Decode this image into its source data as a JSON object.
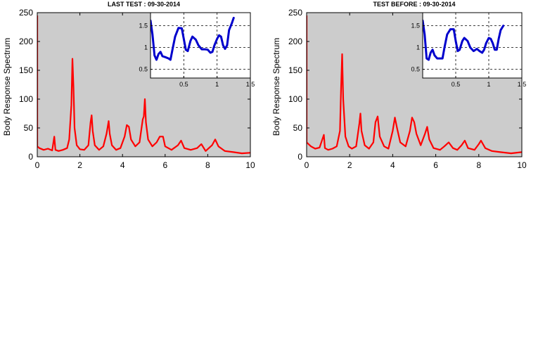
{
  "chart_data": [
    {
      "type": "line",
      "title": "LAST TEST : 09-30-2014",
      "xlabel": "",
      "ylabel": "Body Response Spectrum",
      "xlim": [
        0,
        10
      ],
      "ylim": [
        0,
        250
      ],
      "x_ticks": [
        0,
        2,
        4,
        6,
        8,
        10
      ],
      "y_ticks": [
        0,
        50,
        100,
        150,
        200,
        250
      ],
      "background": "#cccccc",
      "grid": false,
      "series": [
        {
          "color": "#ff0000",
          "points": [
            [
              0.0,
              245
            ],
            [
              0.0,
              18
            ],
            [
              0.1,
              15
            ],
            [
              0.3,
              12
            ],
            [
              0.5,
              14
            ],
            [
              0.7,
              11
            ],
            [
              0.8,
              35
            ],
            [
              0.85,
              12
            ],
            [
              1.0,
              10
            ],
            [
              1.2,
              12
            ],
            [
              1.4,
              15
            ],
            [
              1.5,
              30
            ],
            [
              1.6,
              90
            ],
            [
              1.65,
              170
            ],
            [
              1.7,
              120
            ],
            [
              1.75,
              50
            ],
            [
              1.85,
              20
            ],
            [
              2.0,
              13
            ],
            [
              2.2,
              12
            ],
            [
              2.4,
              20
            ],
            [
              2.5,
              60
            ],
            [
              2.55,
              72
            ],
            [
              2.6,
              45
            ],
            [
              2.7,
              20
            ],
            [
              2.9,
              12
            ],
            [
              3.1,
              18
            ],
            [
              3.25,
              40
            ],
            [
              3.35,
              62
            ],
            [
              3.4,
              40
            ],
            [
              3.5,
              20
            ],
            [
              3.7,
              12
            ],
            [
              3.9,
              15
            ],
            [
              4.1,
              35
            ],
            [
              4.2,
              55
            ],
            [
              4.3,
              52
            ],
            [
              4.4,
              30
            ],
            [
              4.6,
              18
            ],
            [
              4.8,
              25
            ],
            [
              4.95,
              65
            ],
            [
              5.0,
              70
            ],
            [
              5.05,
              100
            ],
            [
              5.1,
              60
            ],
            [
              5.2,
              30
            ],
            [
              5.4,
              18
            ],
            [
              5.6,
              25
            ],
            [
              5.75,
              35
            ],
            [
              5.9,
              35
            ],
            [
              6.0,
              18
            ],
            [
              6.3,
              12
            ],
            [
              6.6,
              20
            ],
            [
              6.75,
              28
            ],
            [
              6.9,
              15
            ],
            [
              7.2,
              12
            ],
            [
              7.5,
              15
            ],
            [
              7.7,
              22
            ],
            [
              7.9,
              10
            ],
            [
              8.2,
              20
            ],
            [
              8.35,
              30
            ],
            [
              8.5,
              18
            ],
            [
              8.8,
              10
            ],
            [
              9.2,
              8
            ],
            [
              9.6,
              6
            ],
            [
              10.0,
              7
            ]
          ]
        }
      ],
      "inset": {
        "type": "line",
        "xlim": [
          0,
          1.5
        ],
        "ylim": [
          0.3,
          1.8
        ],
        "x_ticks": [
          0.5,
          1,
          1.5
        ],
        "y_ticks": [
          0.5,
          1,
          1.5
        ],
        "background": "#ffffff",
        "grid": true,
        "series": [
          {
            "color": "#0000cc",
            "points": [
              [
                0.0,
                1.62
              ],
              [
                0.03,
                1.3
              ],
              [
                0.06,
                0.82
              ],
              [
                0.09,
                0.72
              ],
              [
                0.12,
                0.85
              ],
              [
                0.15,
                0.9
              ],
              [
                0.18,
                0.8
              ],
              [
                0.22,
                0.78
              ],
              [
                0.27,
                0.75
              ],
              [
                0.3,
                0.72
              ],
              [
                0.33,
                0.95
              ],
              [
                0.37,
                1.25
              ],
              [
                0.42,
                1.45
              ],
              [
                0.47,
                1.44
              ],
              [
                0.5,
                1.2
              ],
              [
                0.53,
                0.95
              ],
              [
                0.56,
                0.92
              ],
              [
                0.6,
                1.15
              ],
              [
                0.63,
                1.25
              ],
              [
                0.68,
                1.18
              ],
              [
                0.72,
                1.05
              ],
              [
                0.77,
                0.96
              ],
              [
                0.82,
                0.96
              ],
              [
                0.86,
                0.95
              ],
              [
                0.9,
                0.88
              ],
              [
                0.93,
                0.9
              ],
              [
                0.96,
                1.05
              ],
              [
                1.0,
                1.2
              ],
              [
                1.03,
                1.28
              ],
              [
                1.06,
                1.25
              ],
              [
                1.09,
                1.05
              ],
              [
                1.12,
                0.97
              ],
              [
                1.15,
                1.05
              ],
              [
                1.18,
                1.4
              ],
              [
                1.22,
                1.55
              ],
              [
                1.25,
                1.68
              ]
            ]
          }
        ]
      }
    },
    {
      "type": "line",
      "title": "TEST BEFORE : 09-30-2014",
      "xlabel": "",
      "ylabel": "Body Response Spectrum",
      "xlim": [
        0,
        10
      ],
      "ylim": [
        0,
        250
      ],
      "x_ticks": [
        0,
        2,
        4,
        6,
        8,
        10
      ],
      "y_ticks": [
        0,
        50,
        100,
        150,
        200,
        250
      ],
      "background": "#cccccc",
      "grid": false,
      "series": [
        {
          "color": "#ff0000",
          "points": [
            [
              0.0,
              245
            ],
            [
              0.0,
              25
            ],
            [
              0.2,
              18
            ],
            [
              0.4,
              14
            ],
            [
              0.6,
              16
            ],
            [
              0.8,
              38
            ],
            [
              0.85,
              15
            ],
            [
              1.0,
              12
            ],
            [
              1.2,
              14
            ],
            [
              1.4,
              18
            ],
            [
              1.55,
              45
            ],
            [
              1.6,
              120
            ],
            [
              1.65,
              178
            ],
            [
              1.7,
              100
            ],
            [
              1.8,
              35
            ],
            [
              1.95,
              18
            ],
            [
              2.1,
              14
            ],
            [
              2.3,
              18
            ],
            [
              2.45,
              58
            ],
            [
              2.5,
              75
            ],
            [
              2.55,
              45
            ],
            [
              2.7,
              20
            ],
            [
              2.9,
              14
            ],
            [
              3.1,
              25
            ],
            [
              3.2,
              60
            ],
            [
              3.3,
              70
            ],
            [
              3.4,
              35
            ],
            [
              3.6,
              18
            ],
            [
              3.8,
              14
            ],
            [
              4.0,
              45
            ],
            [
              4.1,
              68
            ],
            [
              4.2,
              50
            ],
            [
              4.35,
              25
            ],
            [
              4.6,
              18
            ],
            [
              4.8,
              45
            ],
            [
              4.9,
              68
            ],
            [
              5.0,
              60
            ],
            [
              5.1,
              40
            ],
            [
              5.3,
              20
            ],
            [
              5.5,
              40
            ],
            [
              5.6,
              52
            ],
            [
              5.7,
              30
            ],
            [
              5.9,
              15
            ],
            [
              6.2,
              12
            ],
            [
              6.4,
              18
            ],
            [
              6.6,
              25
            ],
            [
              6.8,
              15
            ],
            [
              7.0,
              12
            ],
            [
              7.2,
              20
            ],
            [
              7.35,
              28
            ],
            [
              7.5,
              15
            ],
            [
              7.8,
              12
            ],
            [
              8.0,
              22
            ],
            [
              8.1,
              28
            ],
            [
              8.3,
              15
            ],
            [
              8.6,
              10
            ],
            [
              9.0,
              8
            ],
            [
              9.5,
              6
            ],
            [
              10.0,
              8
            ]
          ]
        }
      ],
      "inset": {
        "type": "line",
        "xlim": [
          0,
          1.5
        ],
        "ylim": [
          0.3,
          1.8
        ],
        "x_ticks": [
          0.5,
          1,
          1.5
        ],
        "y_ticks": [
          0.5,
          1,
          1.5
        ],
        "background": "#ffffff",
        "grid": true,
        "series": [
          {
            "color": "#0000cc",
            "points": [
              [
                0.0,
                1.62
              ],
              [
                0.03,
                1.3
              ],
              [
                0.06,
                0.75
              ],
              [
                0.09,
                0.72
              ],
              [
                0.12,
                0.88
              ],
              [
                0.15,
                0.95
              ],
              [
                0.18,
                0.82
              ],
              [
                0.22,
                0.75
              ],
              [
                0.27,
                0.75
              ],
              [
                0.3,
                0.75
              ],
              [
                0.33,
                1.0
              ],
              [
                0.37,
                1.3
              ],
              [
                0.42,
                1.42
              ],
              [
                0.47,
                1.42
              ],
              [
                0.5,
                1.15
              ],
              [
                0.53,
                0.92
              ],
              [
                0.56,
                0.95
              ],
              [
                0.6,
                1.15
              ],
              [
                0.63,
                1.22
              ],
              [
                0.68,
                1.15
              ],
              [
                0.72,
                1.0
              ],
              [
                0.77,
                0.92
              ],
              [
                0.82,
                0.97
              ],
              [
                0.86,
                0.92
              ],
              [
                0.9,
                0.88
              ],
              [
                0.93,
                0.95
              ],
              [
                0.96,
                1.1
              ],
              [
                1.0,
                1.22
              ],
              [
                1.03,
                1.2
              ],
              [
                1.06,
                1.1
              ],
              [
                1.09,
                0.95
              ],
              [
                1.12,
                0.95
              ],
              [
                1.15,
                1.2
              ],
              [
                1.18,
                1.4
              ],
              [
                1.22,
                1.5
              ]
            ]
          }
        ]
      }
    }
  ]
}
